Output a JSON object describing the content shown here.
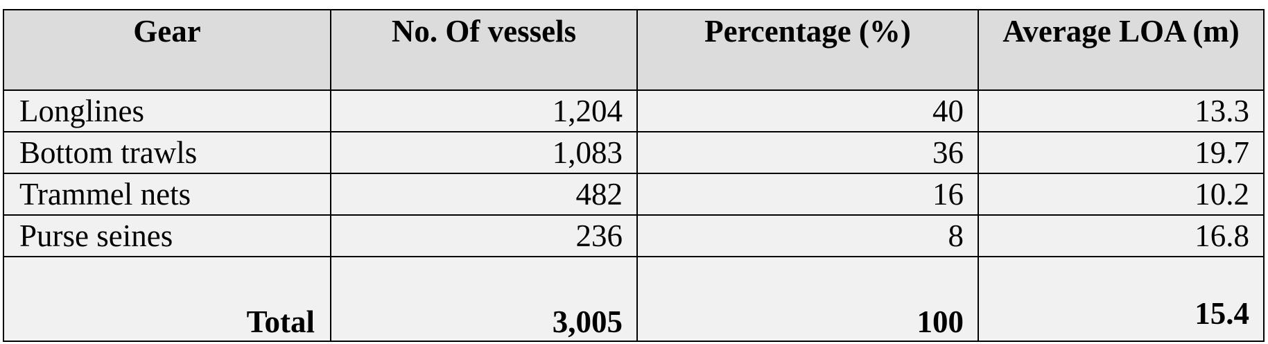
{
  "table": {
    "headers": [
      "Gear",
      "No. Of vessels",
      "Percentage (%)",
      "Average LOA (m)"
    ],
    "rows": [
      {
        "gear": "Longlines",
        "vessels": "1,204",
        "percentage": "40",
        "loa": "13.3"
      },
      {
        "gear": "Bottom trawls",
        "vessels": "1,083",
        "percentage": "36",
        "loa": "19.7"
      },
      {
        "gear": "Trammel nets",
        "vessels": "482",
        "percentage": "16",
        "loa": "10.2"
      },
      {
        "gear": "Purse seines",
        "vessels": "236",
        "percentage": "8",
        "loa": "16.8"
      }
    ],
    "total": {
      "label": "Total",
      "vessels": "3,005",
      "percentage": "100",
      "loa": "15.4"
    }
  },
  "colors": {
    "header_background": "#dcdcdc",
    "body_background": "#f1f1f1",
    "border": "#000000"
  }
}
